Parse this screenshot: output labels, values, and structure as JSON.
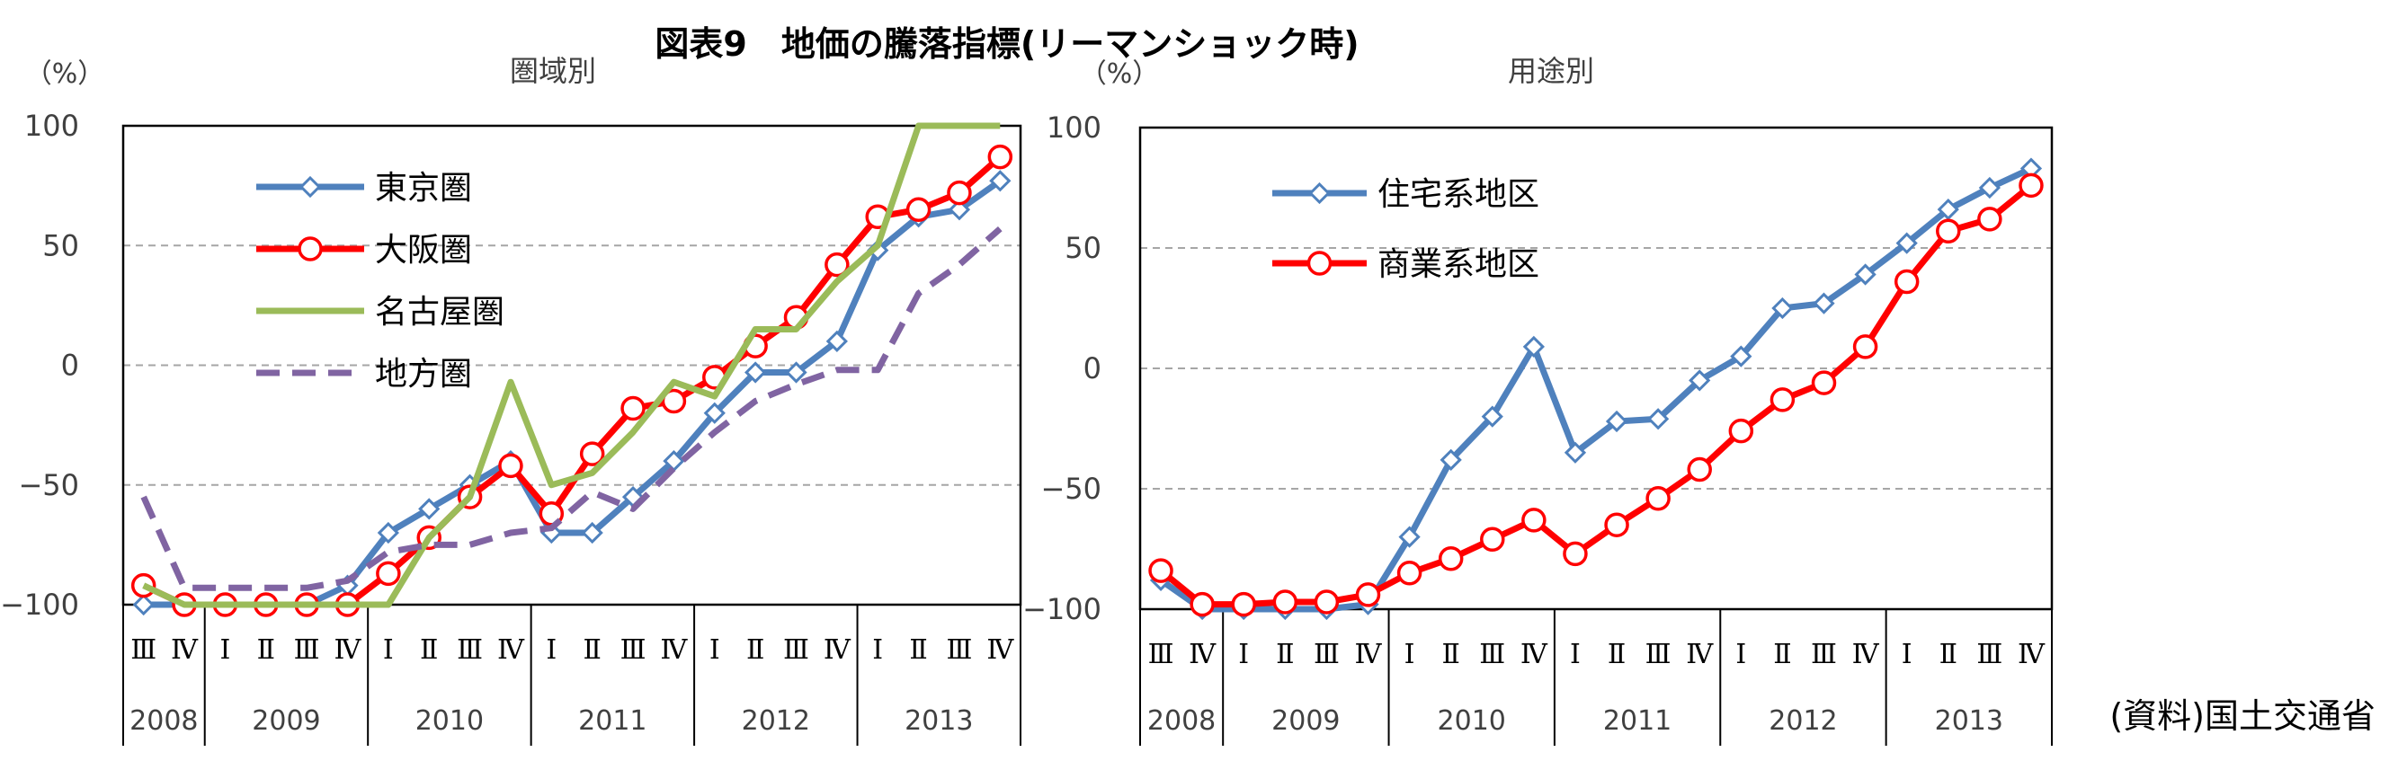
{
  "title": "図表9　地価の騰落指標(リーマンショック時)",
  "source": "(資料)国土交通省",
  "quarter_labels": [
    "Ⅰ",
    "Ⅱ",
    "Ⅲ",
    "Ⅳ"
  ],
  "chart_data": [
    {
      "type": "line",
      "title": "圏域別",
      "ylabel": "（%）",
      "ylim": [
        -100,
        100
      ],
      "yticks": [
        100,
        50,
        0,
        -50,
        -100
      ],
      "grid": true,
      "legend_position": "top-left",
      "periods": [
        "Ⅲ",
        "Ⅳ",
        "Ⅰ",
        "Ⅱ",
        "Ⅲ",
        "Ⅳ",
        "Ⅰ",
        "Ⅱ",
        "Ⅲ",
        "Ⅳ",
        "Ⅰ",
        "Ⅱ",
        "Ⅲ",
        "Ⅳ",
        "Ⅰ",
        "Ⅱ",
        "Ⅲ",
        "Ⅳ",
        "Ⅰ",
        "Ⅱ",
        "Ⅲ",
        "Ⅳ"
      ],
      "years": [
        {
          "label": "2008",
          "quarters": 2
        },
        {
          "label": "2009",
          "quarters": 4
        },
        {
          "label": "2010",
          "quarters": 4
        },
        {
          "label": "2011",
          "quarters": 4
        },
        {
          "label": "2012",
          "quarters": 4
        },
        {
          "label": "2013",
          "quarters": 4
        }
      ],
      "series": [
        {
          "name": "東京圏",
          "color": "#4f81bd",
          "marker": "diamond",
          "dash": "solid",
          "values": [
            -100,
            -100,
            -100,
            -100,
            -100,
            -92,
            -70,
            -60,
            -50,
            -40,
            -70,
            -70,
            -55,
            -40,
            -20,
            -3,
            -3,
            10,
            48,
            62,
            65,
            77
          ]
        },
        {
          "name": "大阪圏",
          "color": "#ff0000",
          "marker": "circle",
          "dash": "solid",
          "values": [
            -92,
            -100,
            -100,
            -100,
            -100,
            -100,
            -87,
            -72,
            -55,
            -42,
            -62,
            -37,
            -18,
            -15,
            -5,
            8,
            20,
            42,
            62,
            65,
            72,
            87
          ]
        },
        {
          "name": "名古屋圏",
          "color": "#9bbb59",
          "marker": "none",
          "dash": "solid",
          "values": [
            -92,
            -100,
            -100,
            -100,
            -100,
            -100,
            -100,
            -72,
            -55,
            -7,
            -50,
            -45,
            -28,
            -7,
            -13,
            15,
            15,
            35,
            50,
            100,
            100,
            100
          ]
        },
        {
          "name": "地方圏",
          "color": "#8064a2",
          "marker": "none",
          "dash": "dashed",
          "values": [
            -55,
            -93,
            -93,
            -93,
            -93,
            -90,
            -78,
            -75,
            -75,
            -70,
            -68,
            -53,
            -60,
            -43,
            -28,
            -15,
            -8,
            -2,
            -2,
            30,
            42,
            57
          ]
        }
      ]
    },
    {
      "type": "line",
      "title": "用途別",
      "ylabel": "（%）",
      "ylim": [
        -100,
        100
      ],
      "yticks": [
        100,
        50,
        0,
        -50,
        -100
      ],
      "grid": true,
      "legend_position": "top-left",
      "periods": [
        "Ⅲ",
        "Ⅳ",
        "Ⅰ",
        "Ⅱ",
        "Ⅲ",
        "Ⅳ",
        "Ⅰ",
        "Ⅱ",
        "Ⅲ",
        "Ⅳ",
        "Ⅰ",
        "Ⅱ",
        "Ⅲ",
        "Ⅳ",
        "Ⅰ",
        "Ⅱ",
        "Ⅲ",
        "Ⅳ",
        "Ⅰ",
        "Ⅱ",
        "Ⅲ",
        "Ⅳ"
      ],
      "years": [
        {
          "label": "2008",
          "quarters": 2
        },
        {
          "label": "2009",
          "quarters": 4
        },
        {
          "label": "2010",
          "quarters": 4
        },
        {
          "label": "2011",
          "quarters": 4
        },
        {
          "label": "2012",
          "quarters": 4
        },
        {
          "label": "2013",
          "quarters": 4
        }
      ],
      "series": [
        {
          "name": "住宅系地区",
          "color": "#4f81bd",
          "marker": "diamond",
          "dash": "solid",
          "values": [
            -88,
            -100,
            -100,
            -100,
            -100,
            -98,
            -70,
            -38,
            -20,
            9,
            -35,
            -22,
            -21,
            -5,
            5,
            25,
            27,
            39,
            52,
            66,
            75,
            83
          ]
        },
        {
          "name": "商業系地区",
          "color": "#ff0000",
          "marker": "circle",
          "dash": "solid",
          "values": [
            -84,
            -98,
            -98,
            -97,
            -97,
            -94,
            -85,
            -79,
            -71,
            -63,
            -77,
            -65,
            -54,
            -42,
            -26,
            -13,
            -6,
            9,
            36,
            57,
            62,
            76
          ]
        }
      ]
    }
  ]
}
